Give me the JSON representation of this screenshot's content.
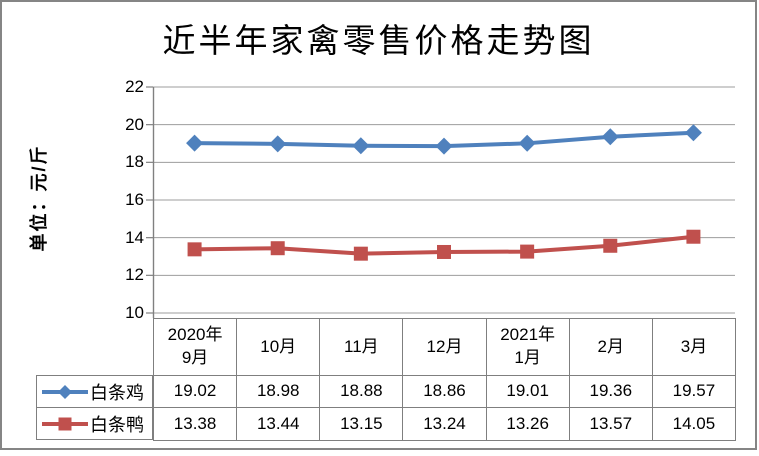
{
  "title": "近半年家禽零售价格走势图",
  "y_axis_label": "单位：元/斤",
  "chart_data": {
    "type": "line",
    "title": "近半年家禽零售价格走势图",
    "ylabel": "单位：元/斤",
    "categories": [
      "2020年9月",
      "10月",
      "11月",
      "12月",
      "2021年1月",
      "2月",
      "3月"
    ],
    "series": [
      {
        "name": "白条鸡",
        "color": "#4F81BD",
        "marker": "diamond",
        "values": [
          19.02,
          18.98,
          18.88,
          18.86,
          19.01,
          19.36,
          19.57
        ]
      },
      {
        "name": "白条鸭",
        "color": "#C0504D",
        "marker": "square",
        "values": [
          13.38,
          13.44,
          13.15,
          13.24,
          13.26,
          13.57,
          14.05
        ]
      }
    ],
    "ylim": [
      10,
      22
    ],
    "yticks": [
      22,
      20,
      18,
      16,
      14,
      12,
      10
    ],
    "grid": true,
    "legend_position": "left-of-data-table"
  },
  "table": {
    "column_headers": [
      "2020年\n9月",
      "10月",
      "11月",
      "12月",
      "2021年\n1月",
      "2月",
      "3月"
    ],
    "rows": [
      {
        "label": "白条鸡",
        "values": [
          "19.02",
          "18.98",
          "18.88",
          "18.86",
          "19.01",
          "19.36",
          "19.57"
        ]
      },
      {
        "label": "白条鸭",
        "values": [
          "13.38",
          "13.44",
          "13.15",
          "13.24",
          "13.26",
          "13.57",
          "14.05"
        ]
      }
    ]
  },
  "colors": {
    "series1": "#4F81BD",
    "series2": "#C0504D",
    "gridline": "#9d9d9d",
    "axis": "#808080",
    "table_border": "#7f7f7f",
    "frame_border": "#858585"
  }
}
